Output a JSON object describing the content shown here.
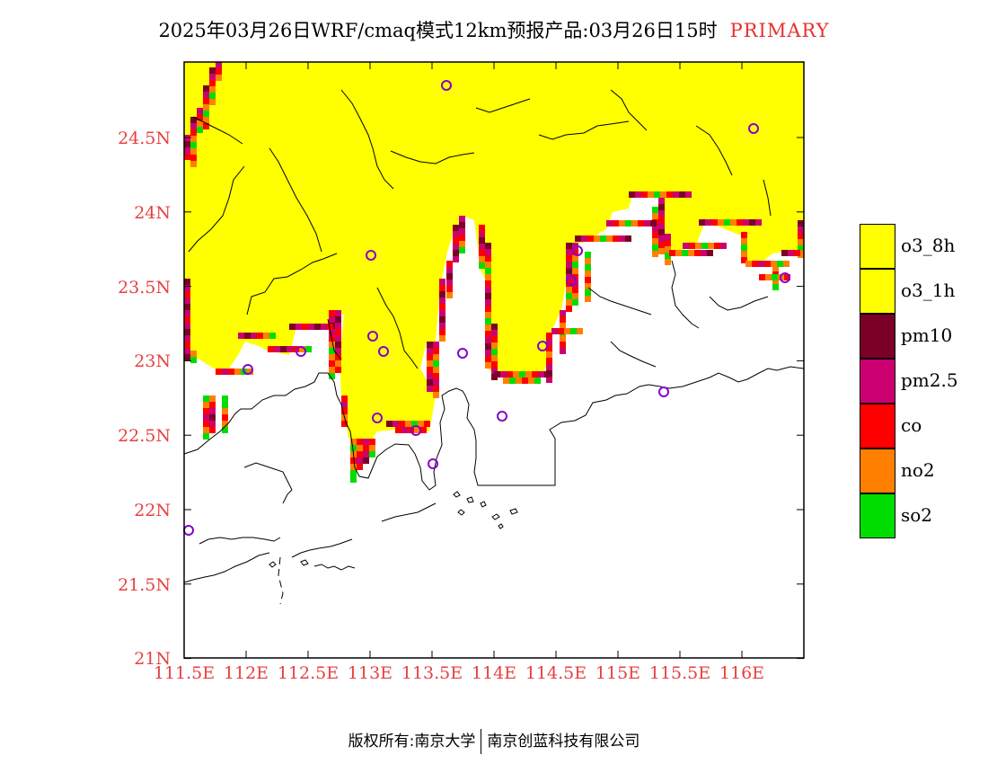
{
  "title": {
    "main": "2025年03月26日WRF/cmaq模式12km预报产品:03月26日15时",
    "tag": "PRIMARY"
  },
  "axes": {
    "lat_ticks": [
      "24.5N",
      "24N",
      "23.5N",
      "23N",
      "22.5N",
      "22N",
      "21.5N",
      "21N"
    ],
    "lon_ticks": [
      "111.5E",
      "112E",
      "112.5E",
      "113E",
      "113.5E",
      "114E",
      "114.5E",
      "115E",
      "115.5E",
      "116E"
    ]
  },
  "legend": [
    {
      "label": "o3_8h",
      "color": "#ffff00"
    },
    {
      "label": "o3_1h",
      "color": "#ffff00"
    },
    {
      "label": "pm10",
      "color": "#7a0028"
    },
    {
      "label": "pm2.5",
      "color": "#cc0070"
    },
    {
      "label": "co",
      "color": "#ff0000"
    },
    {
      "label": "no2",
      "color": "#ff8000"
    },
    {
      "label": "so2",
      "color": "#00dd00"
    }
  ],
  "footer": {
    "left": "版权所有:南京大学",
    "right": "南京创蓝科技有限公司"
  }
}
